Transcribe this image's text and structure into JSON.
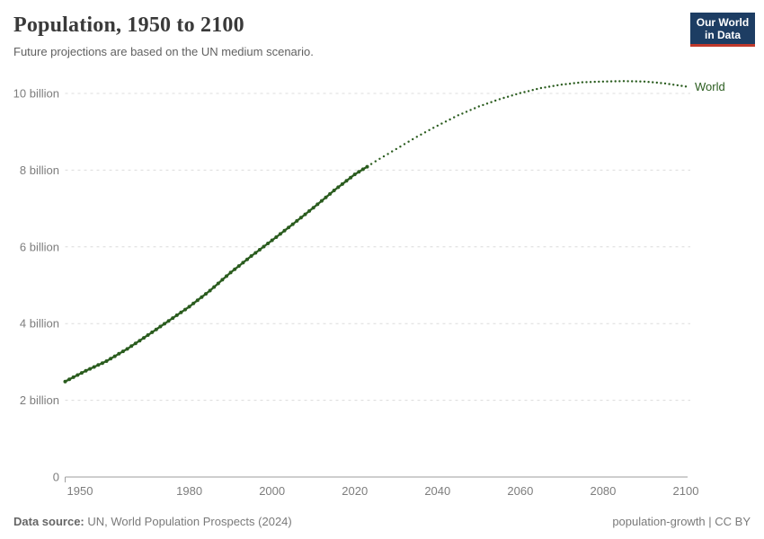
{
  "header": {
    "title": "Population, 1950 to 2100",
    "subtitle": "Future projections are based on the UN medium scenario."
  },
  "logo": {
    "line1": "Our World",
    "line2": "in Data",
    "bg_color": "#1d3d63",
    "bar_color": "#c0392b"
  },
  "footer": {
    "source_label": "Data source:",
    "source_text": " UN, World Population Prospects (2024)",
    "credits": "population-growth | CC BY"
  },
  "chart_data": {
    "type": "line",
    "title": "Population, 1950 to 2100",
    "subtitle": "Future projections are based on the UN medium scenario.",
    "unit": "billion people",
    "x_range": [
      1950,
      2100
    ],
    "y_range": [
      0,
      10.5
    ],
    "grid": true,
    "gridline_style": "dashed",
    "legend_position": "end-of-line",
    "x_ticks": [
      1950,
      1980,
      2000,
      2020,
      2040,
      2060,
      2080,
      2100
    ],
    "y_ticks": [
      {
        "value": 0,
        "label": "0"
      },
      {
        "value": 2,
        "label": "2 billion"
      },
      {
        "value": 4,
        "label": "4 billion"
      },
      {
        "value": 6,
        "label": "6 billion"
      },
      {
        "value": 8,
        "label": "8 billion"
      },
      {
        "value": 10,
        "label": "10 billion"
      }
    ],
    "series": [
      {
        "name": "World",
        "color": "#2a5c1e",
        "style": "dotted",
        "projection_start": 2024,
        "points": [
          [
            1950,
            2.49
          ],
          [
            1955,
            2.77
          ],
          [
            1960,
            3.02
          ],
          [
            1965,
            3.34
          ],
          [
            1970,
            3.7
          ],
          [
            1975,
            4.07
          ],
          [
            1980,
            4.44
          ],
          [
            1985,
            4.86
          ],
          [
            1990,
            5.33
          ],
          [
            1995,
            5.76
          ],
          [
            2000,
            6.17
          ],
          [
            2005,
            6.59
          ],
          [
            2010,
            7.02
          ],
          [
            2015,
            7.47
          ],
          [
            2020,
            7.89
          ],
          [
            2023,
            8.09
          ],
          [
            2025,
            8.23
          ],
          [
            2030,
            8.55
          ],
          [
            2035,
            8.87
          ],
          [
            2040,
            9.16
          ],
          [
            2045,
            9.43
          ],
          [
            2050,
            9.66
          ],
          [
            2055,
            9.85
          ],
          [
            2060,
            10.01
          ],
          [
            2065,
            10.14
          ],
          [
            2070,
            10.23
          ],
          [
            2075,
            10.29
          ],
          [
            2080,
            10.31
          ],
          [
            2085,
            10.32
          ],
          [
            2090,
            10.31
          ],
          [
            2095,
            10.26
          ],
          [
            2100,
            10.18
          ]
        ]
      }
    ],
    "axis_color": "#9e9e9e",
    "gridline_color": "#dcdcdc",
    "tick_label_color": "#7d7d7d"
  }
}
